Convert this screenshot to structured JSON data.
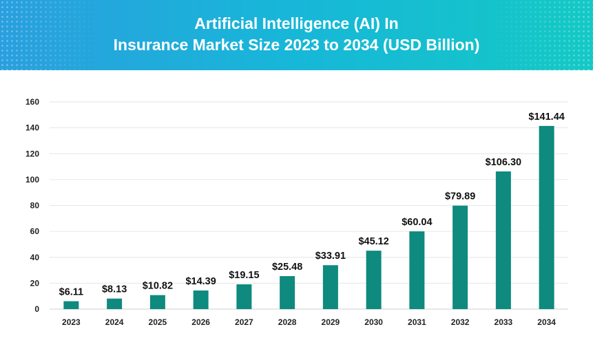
{
  "header": {
    "title_line1": "Artificial Intelligence (AI) In",
    "title_line2": "Insurance Market Size 2023 to 2034 (USD Billion)"
  },
  "colors": {
    "bar": "#0e8a7e",
    "banner_start": "#2a9fde",
    "banner_end": "#14c9c5",
    "gridline": "#e6e6e6"
  },
  "chart_data": {
    "type": "bar",
    "title": "Artificial Intelligence (AI) In Insurance Market Size 2023 to 2034 (USD Billion)",
    "xlabel": "",
    "ylabel": "",
    "categories": [
      "2023",
      "2024",
      "2025",
      "2026",
      "2027",
      "2028",
      "2029",
      "2030",
      "2031",
      "2032",
      "2033",
      "2034"
    ],
    "values": [
      6.11,
      8.13,
      10.82,
      14.39,
      19.15,
      25.48,
      33.91,
      45.12,
      60.04,
      79.89,
      106.3,
      141.44
    ],
    "data_labels": [
      "$6.11",
      "$8.13",
      "$10.82",
      "$14.39",
      "$19.15",
      "$25.48",
      "$33.91",
      "$45.12",
      "$60.04",
      "$79.89",
      "$106.30",
      "$141.44"
    ],
    "y_ticks": [
      0,
      20,
      40,
      60,
      80,
      100,
      120,
      140,
      160
    ],
    "ylim": [
      0,
      160
    ],
    "grid": true,
    "legend": "none"
  }
}
